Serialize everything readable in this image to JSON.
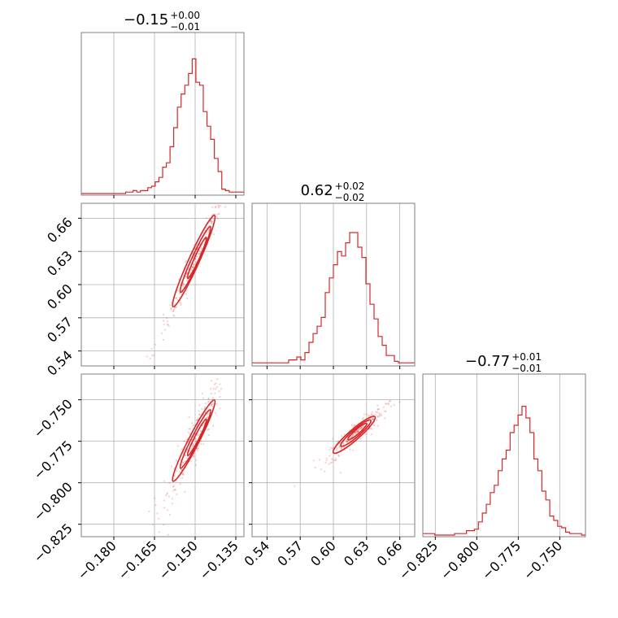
{
  "chart_data": {
    "type": "corner",
    "color": "#d62728",
    "grid": true,
    "params": [
      {
        "title": {
          "value": "−0.15",
          "plus": "+0.00",
          "minus": "−0.01"
        },
        "range": [
          -0.192,
          -0.132
        ],
        "ticks": [
          {
            "value": -0.18,
            "label": "−0.180"
          },
          {
            "value": -0.165,
            "label": "−0.165"
          },
          {
            "value": -0.15,
            "label": "−0.150"
          },
          {
            "value": -0.135,
            "label": "−0.135"
          }
        ],
        "hist": [
          0,
          0,
          0,
          0,
          0,
          0,
          0,
          0,
          0,
          0,
          0,
          0,
          0.01,
          0.01,
          0.02,
          0.01,
          0.02,
          0.02,
          0.04,
          0.05,
          0.08,
          0.11,
          0.18,
          0.21,
          0.32,
          0.45,
          0.59,
          0.68,
          0.74,
          0.82,
          0.92,
          0.76,
          0.74,
          0.56,
          0.46,
          0.37,
          0.24,
          0.15,
          0.03,
          0.02,
          0.01,
          0.01,
          0.01,
          0.01
        ]
      },
      {
        "title": {
          "value": "0.62",
          "plus": "+0.02",
          "minus": "−0.02"
        },
        "range": [
          0.5265,
          0.6735
        ],
        "ticks": [
          {
            "value": 0.54,
            "label": "0.54"
          },
          {
            "value": 0.57,
            "label": "0.57"
          },
          {
            "value": 0.6,
            "label": "0.60"
          },
          {
            "value": 0.63,
            "label": "0.63"
          },
          {
            "value": 0.66,
            "label": "0.66"
          }
        ],
        "hist": [
          0.01,
          0.01,
          0.01,
          0.01,
          0.01,
          0.01,
          0.01,
          0.01,
          0.01,
          0.03,
          0.03,
          0.05,
          0.03,
          0.08,
          0.15,
          0.21,
          0.26,
          0.32,
          0.49,
          0.59,
          0.68,
          0.77,
          0.74,
          0.83,
          0.9,
          0.9,
          0.8,
          0.73,
          0.55,
          0.41,
          0.31,
          0.19,
          0.13,
          0.06,
          0.06,
          0.02,
          0.01,
          0.01,
          0.01,
          0.01
        ]
      },
      {
        "title": {
          "value": "−0.77",
          "plus": "+0.01",
          "minus": "−0.01"
        },
        "range": [
          -0.8325,
          -0.7345
        ],
        "ticks": [
          {
            "value": -0.825,
            "label": "−0.825"
          },
          {
            "value": -0.8,
            "label": "−0.800"
          },
          {
            "value": -0.775,
            "label": "−0.775"
          },
          {
            "value": -0.75,
            "label": "−0.750"
          }
        ],
        "hist": [
          0.01,
          0.01,
          0.01,
          0,
          0,
          0,
          0,
          0,
          0.01,
          0.01,
          0.01,
          0.03,
          0.03,
          0.04,
          0.09,
          0.15,
          0.21,
          0.29,
          0.34,
          0.44,
          0.52,
          0.58,
          0.7,
          0.75,
          0.82,
          0.88,
          0.8,
          0.7,
          0.52,
          0.44,
          0.3,
          0.24,
          0.13,
          0.1,
          0.06,
          0.05,
          0.02,
          0.01,
          0.01,
          0.01,
          0.0
        ]
      }
    ],
    "pairs": [
      {
        "x": 0,
        "y": 1,
        "slope": 5.4,
        "intercept": 1.434,
        "width": 0.006
      },
      {
        "x": 0,
        "y": 2,
        "slope": 3.2,
        "intercept": -0.293,
        "width": 0.006
      },
      {
        "x": 1,
        "y": 2,
        "slope": 0.58,
        "intercept": -1.13,
        "width": 0.003
      }
    ]
  }
}
